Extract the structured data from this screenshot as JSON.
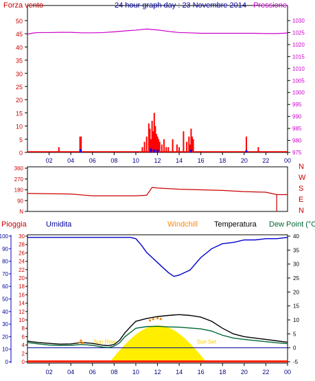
{
  "chart_data": [
    {
      "type": "line",
      "title": "24 hour graph day : 23 Novembre 2014",
      "left_axis_label": "Forza vento",
      "right_axis_label": "Pressione",
      "left_ylim": [
        0,
        50
      ],
      "left_ticks": [
        "0",
        "5",
        "10",
        "15",
        "20",
        "25",
        "30",
        "35",
        "40",
        "45",
        "50"
      ],
      "right_ylim": [
        975,
        1030
      ],
      "right_ticks": [
        "975",
        "980",
        "985",
        "990",
        "995",
        "1000",
        "1005",
        "1010",
        "1015",
        "1020",
        "1025",
        "1030"
      ],
      "xlim": [
        0,
        24
      ],
      "x_ticks": [
        "02",
        "04",
        "06",
        "08",
        "10",
        "12",
        "14",
        "16",
        "18",
        "20",
        "22",
        "00"
      ],
      "grid": false,
      "colors": {
        "wind": "#ff0000",
        "gust": "#0000ff",
        "pressure": "#cc00cc",
        "axis": "#cc0000"
      },
      "pressure": {
        "x": [
          0,
          0.5,
          1,
          2,
          3,
          4,
          5,
          6,
          7,
          8,
          9,
          10,
          11,
          12,
          13,
          14,
          15,
          16,
          17,
          18,
          19,
          20,
          21,
          22,
          23,
          24
        ],
        "values": [
          1024.3,
          1024.8,
          1025.0,
          1025.0,
          1025.1,
          1025.1,
          1024.9,
          1024.9,
          1025.0,
          1025.3,
          1025.7,
          1026.0,
          1026.5,
          1026.1,
          1025.5,
          1025.0,
          1024.9,
          1024.7,
          1024.7,
          1024.7,
          1024.7,
          1024.7,
          1024.7,
          1024.6,
          1024.6,
          1024.8
        ]
      },
      "wind_bars": {
        "x": [
          2.9,
          4.85,
          4.95,
          10.6,
          10.8,
          11.0,
          11.2,
          11.3,
          11.4,
          11.5,
          11.6,
          11.7,
          11.8,
          11.9,
          12.0,
          12.1,
          12.2,
          12.4,
          12.6,
          12.8,
          13.0,
          13.4,
          13.8,
          14.0,
          14.4,
          14.7,
          14.9,
          15.0,
          15.1,
          15.2,
          15.3,
          20.2,
          21.3
        ],
        "values": [
          2,
          6,
          6,
          2,
          4,
          6,
          11,
          9,
          5,
          12,
          8,
          15,
          10,
          7,
          6,
          5,
          4,
          3,
          5,
          2,
          2,
          5,
          3,
          2,
          8,
          4,
          6,
          3,
          9,
          6,
          5,
          6,
          2
        ]
      },
      "gust_bars": {
        "x": [
          4.9,
          11.4,
          11.7,
          12.0,
          15.1,
          20.2
        ],
        "values": [
          1.2,
          1.5,
          1.0,
          1.0,
          1.0,
          0.8
        ]
      }
    },
    {
      "type": "line",
      "y_ticks": [
        "N",
        "90",
        "180",
        "270",
        "360"
      ],
      "direction_labels": [
        "N",
        "W",
        "S",
        "E",
        "N"
      ],
      "ylim": [
        0,
        360
      ],
      "xlim": [
        0,
        24
      ],
      "color": "#cc0000",
      "direction": {
        "x": [
          0,
          4,
          6,
          10,
          11,
          11.5,
          12,
          13,
          14,
          16,
          18,
          20,
          22,
          23,
          24
        ],
        "values": [
          150,
          145,
          130,
          130,
          135,
          200,
          195,
          190,
          185,
          180,
          175,
          165,
          160,
          140,
          140
        ]
      },
      "spike": {
        "x": 23,
        "value": 0
      }
    },
    {
      "type": "line",
      "legend": [
        "Pioggia",
        "Umidita",
        "Windchill",
        "Temperatura",
        "Dew Point (°C"
      ],
      "legend_colors": [
        "#cc0000",
        "#000099",
        "#ff8800",
        "#000000",
        "#006633"
      ],
      "left1_ticks": [
        "0",
        "2",
        "4",
        "6",
        "8",
        "10",
        "12",
        "14",
        "16",
        "18",
        "20",
        "22",
        "24",
        "26",
        "28",
        "30"
      ],
      "left1_ylim": [
        0,
        30
      ],
      "left2_ticks": [
        "0",
        "10",
        "20",
        "30",
        "40",
        "50",
        "60",
        "70",
        "80",
        "90",
        "100"
      ],
      "left2_ylim": [
        0,
        100
      ],
      "right_ticks": [
        "-5",
        "0",
        "5",
        "10",
        "15",
        "20",
        "25",
        "30",
        "35",
        "40"
      ],
      "right_ylim": [
        -5,
        40
      ],
      "xlim": [
        0,
        24
      ],
      "x_ticks": [
        "02",
        "04",
        "06",
        "08",
        "10",
        "12",
        "14",
        "16",
        "18",
        "20",
        "22",
        "00"
      ],
      "annotations": {
        "sunrise": "Sun Rise",
        "sunset": "Sun Set"
      },
      "sunrise_x": 7.6,
      "sunset_x": 16.5,
      "sun_peak_value": 8.0,
      "rain_level": 0,
      "humidity": {
        "x": [
          0,
          1,
          2,
          3,
          4,
          5,
          6,
          7,
          8,
          8.5,
          9,
          9.5,
          10,
          10.5,
          11,
          12,
          13,
          13.5,
          14,
          15,
          15.5,
          16,
          17,
          18,
          19,
          20,
          21,
          22,
          23,
          24
        ],
        "values": [
          99,
          99,
          99,
          99,
          99,
          99,
          99,
          99,
          99,
          99,
          99,
          99,
          98,
          93,
          87,
          79,
          71,
          68,
          69,
          73,
          78,
          83,
          90,
          94,
          95,
          97,
          97,
          98,
          98,
          99
        ]
      },
      "temperature": {
        "x": [
          0,
          1,
          2,
          3,
          4,
          5,
          6,
          7,
          7.5,
          8,
          8.5,
          9,
          9.5,
          10,
          11,
          12,
          13,
          14,
          15,
          16,
          17,
          18,
          19,
          20,
          21,
          22,
          23,
          24
        ],
        "values": [
          2.4,
          1.9,
          1.6,
          1.3,
          1.4,
          1.9,
          1.6,
          0.9,
          0.8,
          1.2,
          2.7,
          5.4,
          7.5,
          9.5,
          10.5,
          11.2,
          11.6,
          11.9,
          11.6,
          11.0,
          9.5,
          7.0,
          5.0,
          4.0,
          3.5,
          3.0,
          2.5,
          2.0
        ]
      },
      "dewpoint": {
        "x": [
          0,
          1,
          2,
          3,
          4,
          5,
          6,
          7,
          7.5,
          8,
          8.5,
          9,
          9.5,
          10,
          11,
          12,
          13,
          14,
          15,
          16,
          17,
          18,
          19,
          20,
          21,
          22,
          23,
          24
        ],
        "values": [
          1.9,
          1.4,
          1.0,
          0.8,
          0.9,
          1.2,
          0.9,
          0.2,
          0.1,
          0.6,
          1.8,
          4.0,
          5.5,
          7.0,
          7.6,
          7.7,
          7.5,
          7.4,
          7.1,
          6.8,
          6.0,
          4.5,
          3.5,
          3.0,
          2.6,
          2.2,
          1.8,
          1.5
        ]
      },
      "windchill": {
        "x": [
          4.8,
          4.95,
          5.1,
          11.3,
          11.6,
          12.0,
          12.3
        ],
        "values": [
          1.9,
          2.6,
          1.7,
          9.8,
          10.3,
          10.6,
          10.3
        ]
      }
    }
  ]
}
